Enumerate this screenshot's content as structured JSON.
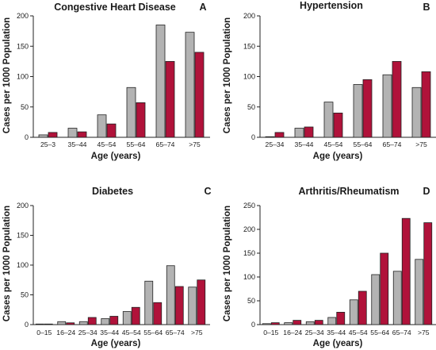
{
  "colors": {
    "series_a": "#b3b3b3",
    "series_b": "#b0123a",
    "axis": "#222222"
  },
  "chart_data": [
    {
      "type": "bar",
      "title": "Congestive Heart Disease",
      "panel_letter": "A",
      "xlabel": "Age (years)",
      "ylabel": "Cases per 1000 Population",
      "ylim": [
        0,
        200
      ],
      "yticks": [
        "0",
        "50",
        "100",
        "150",
        "200"
      ],
      "categories": [
        "25–3",
        "35–44",
        "45–54",
        "55–64",
        "65–74",
        ">75"
      ],
      "series": [
        {
          "values": [
            4,
            15,
            37,
            82,
            185,
            173
          ]
        },
        {
          "values": [
            8,
            9,
            22,
            57,
            125,
            140
          ]
        }
      ],
      "legend": "none",
      "grid": false
    },
    {
      "type": "bar",
      "title": "Hypertension",
      "panel_letter": "B",
      "xlabel": "Age (years)",
      "ylabel": "Cases per 1000 Population",
      "ylim": [
        0,
        200
      ],
      "yticks": [
        "0",
        "50",
        "100",
        "150",
        "200"
      ],
      "categories": [
        "25–34",
        "35–44",
        "45–54",
        "55–64",
        "65–74",
        ">75"
      ],
      "series": [
        {
          "values": [
            1,
            15,
            58,
            87,
            103,
            82
          ]
        },
        {
          "values": [
            8,
            17,
            40,
            95,
            125,
            108
          ]
        }
      ],
      "legend": "none",
      "grid": false
    },
    {
      "type": "bar",
      "title": "Diabetes",
      "panel_letter": "C",
      "xlabel": "Age (years)",
      "ylabel": "Cases per 1000 Population",
      "ylim": [
        0,
        200
      ],
      "yticks": [
        "0",
        "50",
        "100",
        "150",
        "200"
      ],
      "categories": [
        "0–15",
        "16–24",
        "25–34",
        "35–44",
        "45–54",
        "55–64",
        "65–74",
        ">75"
      ],
      "series": [
        {
          "values": [
            1,
            5,
            5,
            10,
            22,
            73,
            99,
            63
          ]
        },
        {
          "values": [
            1,
            3,
            12,
            14,
            29,
            37,
            64,
            75
          ]
        }
      ],
      "legend": "none",
      "grid": false
    },
    {
      "type": "bar",
      "title": "Arthritis/Rheumatism",
      "panel_letter": "D",
      "xlabel": "Age (years)",
      "ylabel": "Cases per 1000 Population",
      "ylim": [
        0,
        250
      ],
      "yticks": [
        "0",
        "50",
        "100",
        "150",
        "200",
        "250"
      ],
      "categories": [
        "0–15",
        "16–24",
        "25–34",
        "35–44",
        "45–54",
        "55–64",
        "65–74",
        ">75"
      ],
      "series": [
        {
          "values": [
            2,
            4,
            6,
            15,
            52,
            105,
            112,
            137
          ]
        },
        {
          "values": [
            4,
            9,
            9,
            26,
            70,
            150,
            223,
            214
          ]
        }
      ],
      "legend": "none",
      "grid": false
    }
  ]
}
